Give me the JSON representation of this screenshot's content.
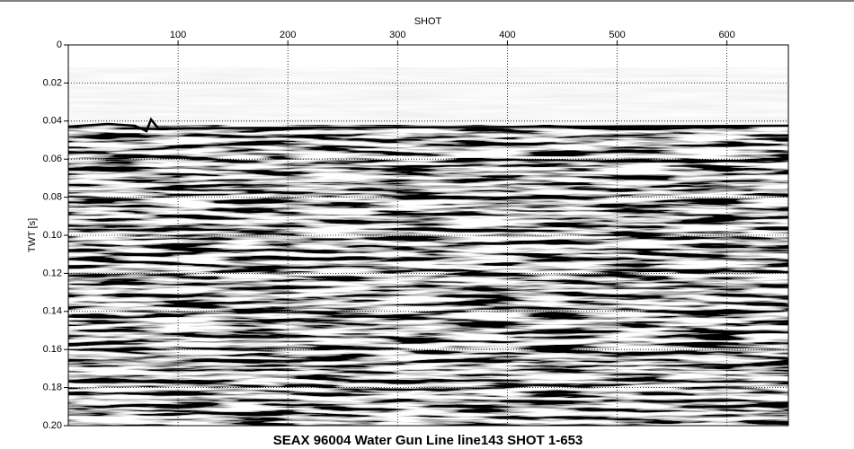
{
  "chart_data": {
    "type": "seismic",
    "title": "SEAX 96004 Water Gun Line line143 SHOT 1-653",
    "x_label": "SHOT",
    "y_label": "TWT [s]",
    "xlim": [
      0,
      656
    ],
    "xticks": [
      100,
      200,
      300,
      400,
      500,
      600
    ],
    "ylim": [
      0,
      0.2
    ],
    "yticks": [
      0,
      0.02,
      0.04,
      0.06,
      0.08,
      {
        "value": 0.1,
        "label": "0.10"
      },
      0.12,
      0.14,
      0.16,
      0.18,
      {
        "value": 0.2,
        "label": "0.20"
      }
    ],
    "grid": true
  }
}
